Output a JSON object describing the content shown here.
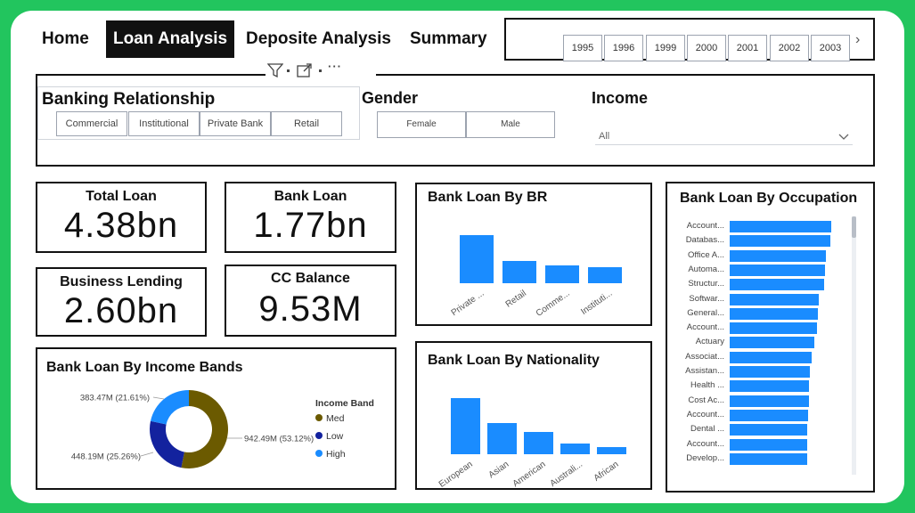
{
  "nav": {
    "tabs": [
      {
        "label": "Home",
        "active": false
      },
      {
        "label": "Loan Analysis",
        "active": true
      },
      {
        "label": "Deposite Analysis",
        "active": false
      },
      {
        "label": "Summary",
        "active": false
      }
    ]
  },
  "years": [
    "1995",
    "1996",
    "1999",
    "2000",
    "2001",
    "2002",
    "2003"
  ],
  "filters": {
    "banking_relationship": {
      "title": "Banking Relationship",
      "options": [
        "Commercial",
        "Institutional",
        "Private Bank",
        "Retail"
      ]
    },
    "gender": {
      "title": "Gender",
      "options": [
        "Female",
        "Male"
      ]
    },
    "income": {
      "title": "Income",
      "selected": "All"
    }
  },
  "kpis": {
    "total_loan": {
      "title": "Total Loan",
      "value": "4.38bn"
    },
    "bank_loan": {
      "title": "Bank Loan",
      "value": "1.77bn"
    },
    "business_lending": {
      "title": "Business Lending",
      "value": "2.60bn"
    },
    "cc_balance": {
      "title": "CC Balance",
      "value": "9.53M"
    }
  },
  "colors": {
    "bar": "#1a8cff",
    "med": "#6b5a00",
    "low": "#13229e",
    "high": "#1a8cff"
  },
  "chart_data": [
    {
      "type": "bar",
      "title": "Bank Loan By BR",
      "categories": [
        "Private ...",
        "Retail",
        "Comme...",
        "Instituti..."
      ],
      "values": [
        1.0,
        0.47,
        0.37,
        0.34
      ]
    },
    {
      "type": "bar",
      "title": "Bank Loan By Nationality",
      "categories": [
        "European",
        "Asian",
        "American",
        "Australi...",
        "African"
      ],
      "values": [
        1.0,
        0.55,
        0.39,
        0.19,
        0.13
      ]
    },
    {
      "type": "bar",
      "orientation": "horizontal",
      "title": "Bank Loan By Occupation",
      "categories": [
        "Account...",
        "Databas...",
        "Office A...",
        "Automa...",
        "Structur...",
        "Softwar...",
        "General...",
        "Account...",
        "Actuary",
        "Associat...",
        "Assistan...",
        "Health ...",
        "Cost Ac...",
        "Account...",
        "Dental ...",
        "Account...",
        "Develop..."
      ],
      "values": [
        1.0,
        0.99,
        0.95,
        0.94,
        0.93,
        0.88,
        0.87,
        0.86,
        0.83,
        0.81,
        0.79,
        0.78,
        0.78,
        0.77,
        0.76,
        0.76,
        0.76
      ]
    },
    {
      "type": "pie",
      "title": "Bank Loan By Income Bands",
      "legend_title": "Income Band",
      "slices": [
        {
          "name": "Med",
          "value": 942.49,
          "label": "942.49M (53.12%)",
          "percent": 53.12
        },
        {
          "name": "Low",
          "value": 448.19,
          "label": "448.19M (25.26%)",
          "percent": 25.26
        },
        {
          "name": "High",
          "value": 383.47,
          "label": "383.47M (21.61%)",
          "percent": 21.61
        }
      ]
    }
  ]
}
